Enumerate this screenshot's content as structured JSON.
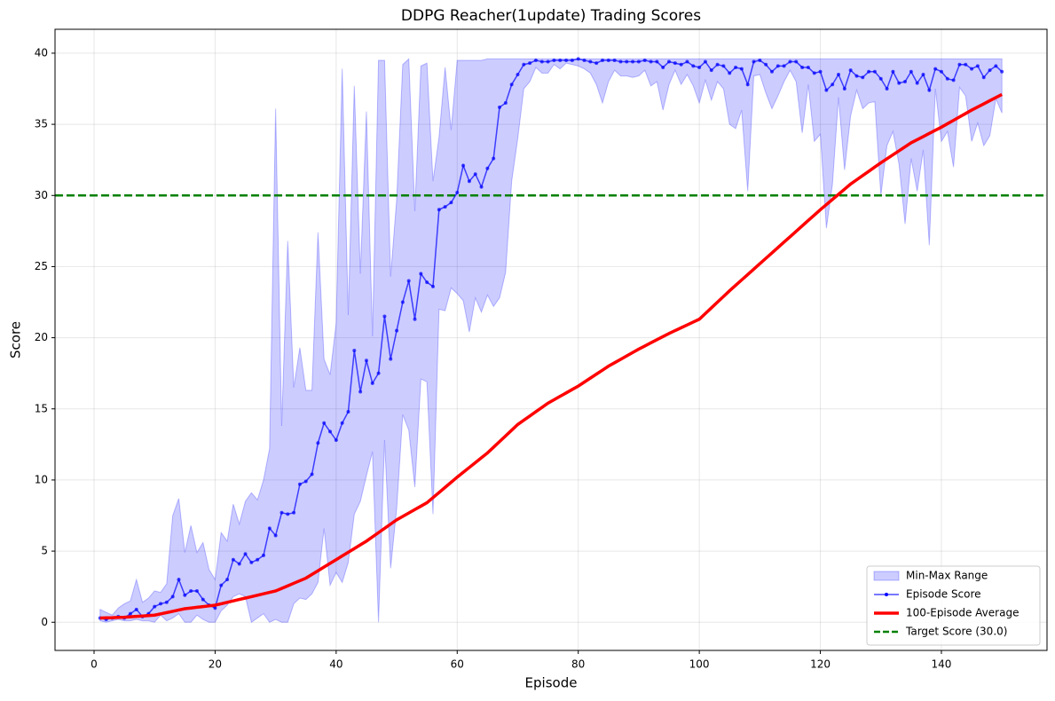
{
  "chart_data": {
    "type": "line",
    "title": "DDPG Reacher(1update) Trading Scores",
    "xlabel": "Episode",
    "ylabel": "Score",
    "xlim": [
      -6.45,
      157.45
    ],
    "ylim": [
      -1.98,
      41.68
    ],
    "xticks": [
      0,
      20,
      40,
      60,
      80,
      100,
      120,
      140
    ],
    "yticks": [
      0,
      5,
      10,
      15,
      20,
      25,
      30,
      35,
      40
    ],
    "grid": true,
    "legend": "lower right",
    "x": [
      1,
      2,
      3,
      4,
      5,
      6,
      7,
      8,
      9,
      10,
      11,
      12,
      13,
      14,
      15,
      16,
      17,
      18,
      19,
      20,
      21,
      22,
      23,
      24,
      25,
      26,
      27,
      28,
      29,
      30,
      31,
      32,
      33,
      34,
      35,
      36,
      37,
      38,
      39,
      40,
      41,
      42,
      43,
      44,
      45,
      46,
      47,
      48,
      49,
      50,
      51,
      52,
      53,
      54,
      55,
      56,
      57,
      58,
      59,
      60,
      61,
      62,
      63,
      64,
      65,
      66,
      67,
      68,
      69,
      70,
      71,
      72,
      73,
      74,
      75,
      76,
      77,
      78,
      79,
      80,
      81,
      82,
      83,
      84,
      85,
      86,
      87,
      88,
      89,
      90,
      91,
      92,
      93,
      94,
      95,
      96,
      97,
      98,
      99,
      100,
      101,
      102,
      103,
      104,
      105,
      106,
      107,
      108,
      109,
      110,
      111,
      112,
      113,
      114,
      115,
      116,
      117,
      118,
      119,
      120,
      121,
      122,
      123,
      124,
      125,
      126,
      127,
      128,
      129,
      130,
      131,
      132,
      133,
      134,
      135,
      136,
      137,
      138,
      139,
      140,
      141,
      142,
      143,
      144,
      145,
      146,
      147,
      148,
      149,
      150
    ],
    "band": {
      "name": "Min-Max Range",
      "color": "#0000ff",
      "lower": [
        0.1,
        0,
        0.1,
        0.2,
        0.1,
        0.1,
        0.2,
        0.1,
        0.1,
        0,
        0.5,
        0.1,
        0.3,
        0.6,
        0,
        0,
        0.5,
        0.2,
        0,
        0,
        0.8,
        1.2,
        1.8,
        2,
        1.8,
        0,
        0.3,
        0.6,
        0,
        0.2,
        0,
        0,
        1.3,
        1.7,
        1.6,
        2,
        2.8,
        6.6,
        2.6,
        3.5,
        2.8,
        4.2,
        7.6,
        8.5,
        10.3,
        12,
        0,
        12.8,
        3.8,
        8,
        14.6,
        13.5,
        9.5,
        17.1,
        16.9,
        7.6,
        22,
        21.9,
        23.5,
        23.1,
        22.6,
        20.4,
        22.8,
        21.8,
        23,
        22.2,
        22.8,
        24.6,
        31,
        34,
        37.5,
        38,
        39,
        38.6,
        38.6,
        39.2,
        38.9,
        39.3,
        39.2,
        39.1,
        38.9,
        38.6,
        37.8,
        36.5,
        38,
        38.8,
        38.4,
        38.4,
        38.3,
        38.4,
        38.8,
        37.7,
        38,
        36,
        37.8,
        38.8,
        37.8,
        38.5,
        37.7,
        36.5,
        38.1,
        36.7,
        38,
        37.5,
        35,
        34.7,
        36,
        30.3,
        38.4,
        38.5,
        37.2,
        36.1,
        37,
        38,
        38.8,
        38,
        34.4,
        37.8,
        33.8,
        34.3,
        27.7,
        30.8,
        36.9,
        31.8,
        35.6,
        37.4,
        36.1,
        36.5,
        36.6,
        30,
        33.5,
        34.5,
        32.2,
        28,
        32.6,
        30.3,
        33.2,
        26.5,
        37.5,
        33.8,
        34.5,
        32,
        37.6,
        37,
        33.8,
        35.1,
        33.5,
        34.2,
        36.8,
        35.8
      ],
      "upper": [
        0.9,
        0.7,
        0.5,
        1,
        1.3,
        1.5,
        3,
        1.4,
        1.7,
        2.2,
        2.1,
        2.7,
        7.5,
        8.7,
        4.9,
        6.8,
        4.9,
        5.6,
        3.7,
        3,
        6.3,
        5.7,
        8.3,
        6.9,
        8.5,
        9.1,
        8.6,
        10,
        12.2,
        36.1,
        13.8,
        26.8,
        16.5,
        19.3,
        16.3,
        16.3,
        27.4,
        18.5,
        17.4,
        21,
        38.9,
        21.6,
        37.7,
        24.5,
        35.9,
        20.1,
        39.5,
        39.5,
        24.3,
        29.7,
        39.2,
        39.6,
        28.9,
        39.1,
        39.3,
        31,
        34.1,
        39,
        34.6,
        39.5,
        39.5,
        39.5,
        39.5,
        39.5,
        39.6,
        39.6,
        39.6,
        39.6,
        39.6,
        39.6,
        39.6,
        39.6,
        39.6,
        39.6,
        39.6,
        39.6,
        39.6,
        39.6,
        39.6,
        39.6,
        39.6,
        39.6,
        39.6,
        39.6,
        39.6,
        39.6,
        39.6,
        39.6,
        39.6,
        39.6,
        39.6,
        39.6,
        39.6,
        39.6,
        39.6,
        39.6,
        39.6,
        39.6,
        39.6,
        39.6,
        39.6,
        39.6,
        39.6,
        39.6,
        39.6,
        39.6,
        39.6,
        39.6,
        39.6,
        39.6,
        39.6,
        39.6,
        39.6,
        39.6,
        39.6,
        39.6,
        39.6,
        39.6,
        39.6,
        39.6,
        39.6,
        39.6,
        39.6,
        39.6,
        39.6,
        39.6,
        39.6,
        39.6,
        39.6,
        39.6,
        39.6,
        39.6,
        39.6,
        39.6,
        39.6,
        39.6,
        39.6,
        39.6,
        39.6,
        39.6,
        39.6,
        39.6,
        39.6,
        39.6,
        39.6,
        39.6,
        39.6,
        39.6,
        39.6,
        39.6
      ]
    },
    "series": [
      {
        "name": "Episode Score",
        "color": "#0000ff",
        "markers": true,
        "values": [
          0.3,
          0.2,
          0.3,
          0.4,
          0.3,
          0.6,
          0.9,
          0.4,
          0.6,
          1.1,
          1.3,
          1.4,
          1.8,
          3,
          1.9,
          2.2,
          2.2,
          1.6,
          1.2,
          1,
          2.6,
          3,
          4.4,
          4.1,
          4.8,
          4.2,
          4.4,
          4.7,
          6.6,
          6.1,
          7.7,
          7.6,
          7.7,
          9.7,
          9.9,
          10.4,
          12.6,
          14,
          13.4,
          12.8,
          14,
          14.8,
          19.1,
          16.2,
          18.4,
          16.8,
          17.5,
          21.5,
          18.5,
          20.5,
          22.5,
          24,
          21.3,
          24.5,
          23.9,
          23.6,
          29,
          29.2,
          29.5,
          30.2,
          32.1,
          31,
          31.5,
          30.6,
          31.9,
          32.6,
          36.2,
          36.5,
          37.8,
          38.5,
          39.2,
          39.3,
          39.5,
          39.4,
          39.4,
          39.5,
          39.5,
          39.5,
          39.5,
          39.6,
          39.5,
          39.4,
          39.3,
          39.5,
          39.5,
          39.5,
          39.4,
          39.4,
          39.4,
          39.4,
          39.5,
          39.4,
          39.4,
          39,
          39.4,
          39.3,
          39.2,
          39.4,
          39.1,
          39,
          39.4,
          38.8,
          39.2,
          39.1,
          38.6,
          39,
          38.9,
          37.8,
          39.4,
          39.5,
          39.2,
          38.7,
          39.1,
          39.1,
          39.4,
          39.4,
          39,
          39,
          38.6,
          38.7,
          37.4,
          37.8,
          38.5,
          37.5,
          38.8,
          38.4,
          38.3,
          38.7,
          38.7,
          38.2,
          37.5,
          38.7,
          37.9,
          38,
          38.7,
          37.9,
          38.5,
          37.4,
          38.9,
          38.7,
          38.2,
          38.1,
          39.2,
          39.2,
          38.9,
          39.1,
          38.3,
          38.8,
          39.1,
          38.7
        ]
      },
      {
        "name": "100-Episode Average",
        "color": "#ff0000",
        "markers": false,
        "values": [
          0.3,
          0.31,
          0.32,
          0.34,
          0.35,
          0.38,
          0.41,
          0.44,
          0.47,
          0.5,
          0.59,
          0.68,
          0.77,
          0.86,
          0.95,
          1,
          1.05,
          1.1,
          1.15,
          1.2,
          1.3,
          1.4,
          1.5,
          1.6,
          1.7,
          1.8,
          1.9,
          2,
          2.1,
          2.2,
          2.38,
          2.56,
          2.74,
          2.92,
          3.1,
          3.36,
          3.62,
          3.88,
          4.14,
          4.4,
          4.66,
          4.92,
          5.18,
          5.44,
          5.7,
          6,
          6.3,
          6.6,
          6.9,
          7.2,
          7.44,
          7.68,
          7.92,
          8.16,
          8.4,
          8.76,
          9.12,
          9.48,
          9.84,
          10.2,
          10.54,
          10.88,
          11.22,
          11.56,
          11.9,
          12.3,
          12.7,
          13.1,
          13.5,
          13.9,
          14.2,
          14.5,
          14.8,
          15.1,
          15.4,
          15.64,
          15.88,
          16.12,
          16.36,
          16.6,
          16.88,
          17.16,
          17.44,
          17.72,
          18,
          18.24,
          18.48,
          18.72,
          18.96,
          19.2,
          19.42,
          19.64,
          19.86,
          20.08,
          20.3,
          20.5,
          20.7,
          20.9,
          21.1,
          21.3,
          21.7,
          22.1,
          22.5,
          22.9,
          23.3,
          23.68,
          24.06,
          24.44,
          24.82,
          25.2,
          25.58,
          25.96,
          26.34,
          26.72,
          27.1,
          27.48,
          27.86,
          28.24,
          28.62,
          29,
          29.36,
          29.72,
          30.08,
          30.44,
          30.8,
          31.1,
          31.4,
          31.7,
          32,
          32.3,
          32.58,
          32.86,
          33.14,
          33.42,
          33.7,
          33.92,
          34.14,
          34.36,
          34.58,
          34.8,
          35.04,
          35.28,
          35.52,
          35.76,
          36,
          36.22,
          36.44,
          36.66,
          36.88,
          37.1
        ]
      }
    ],
    "target": {
      "name": "Target Score (30.0)",
      "value": 30,
      "color": "#008000"
    }
  }
}
